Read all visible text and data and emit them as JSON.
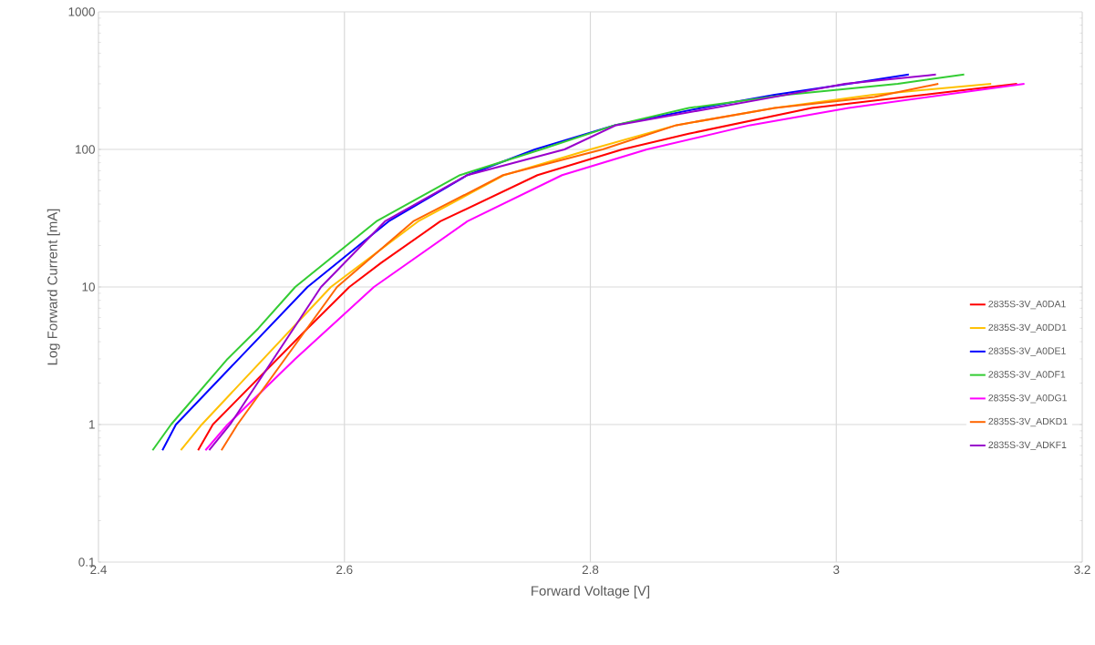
{
  "chart_data": {
    "type": "line",
    "xlabel": "Forward Voltage [V]",
    "ylabel": "Log Forward Current [mA]",
    "xlim": [
      2.4,
      3.2
    ],
    "xticks": [
      2.4,
      2.6,
      2.8,
      3,
      3.2
    ],
    "ylim": [
      0.1,
      1000
    ],
    "yticks": [
      0.1,
      1,
      10,
      100,
      1000
    ],
    "log": "y",
    "grid": true,
    "legend": "right",
    "series": [
      {
        "name": "2835S-3V_A0DA1",
        "color": "#ff0000",
        "x": [
          2.481,
          2.493,
          2.57,
          2.604,
          2.63,
          2.678,
          2.757,
          2.826,
          2.88,
          2.98,
          3.147
        ],
        "values": [
          0.65,
          1,
          5,
          10,
          15,
          30,
          65,
          100,
          130,
          200,
          300
        ]
      },
      {
        "name": "2835S-3V_A0DD1",
        "color": "#ffc000",
        "x": [
          2.467,
          2.484,
          2.589,
          2.66,
          2.73,
          2.8,
          2.87,
          2.95,
          3.03,
          3.126
        ],
        "values": [
          0.65,
          1,
          10,
          30,
          65,
          100,
          150,
          200,
          250,
          300
        ]
      },
      {
        "name": "2835S-3V_A0DE1",
        "color": "#0000ff",
        "x": [
          2.452,
          2.463,
          2.57,
          2.636,
          2.7,
          2.755,
          2.82,
          2.89,
          2.95,
          3.01,
          3.059
        ],
        "values": [
          0.65,
          1,
          10,
          30,
          65,
          100,
          150,
          200,
          250,
          300,
          350
        ]
      },
      {
        "name": "2835S-3V_A0DF1",
        "color": "#33cc33",
        "x": [
          2.444,
          2.459,
          2.505,
          2.53,
          2.56,
          2.626,
          2.694,
          2.76,
          2.82,
          2.88,
          2.96,
          3.05,
          3.104
        ],
        "values": [
          0.65,
          1,
          3,
          5,
          10,
          30,
          65,
          100,
          150,
          200,
          250,
          300,
          350
        ]
      },
      {
        "name": "2835S-3V_A0DG1",
        "color": "#ff00ff",
        "x": [
          2.487,
          2.505,
          2.56,
          2.624,
          2.7,
          2.777,
          2.846,
          2.93,
          3.01,
          3.153
        ],
        "values": [
          0.65,
          1,
          3,
          10,
          30,
          65,
          100,
          150,
          200,
          300
        ]
      },
      {
        "name": "2835S-3V_ADKD1",
        "color": "#ff6600",
        "x": [
          2.5,
          2.513,
          2.594,
          2.656,
          2.729,
          2.81,
          2.87,
          2.95,
          3.031,
          3.083
        ],
        "values": [
          0.65,
          1,
          10,
          30,
          65,
          100,
          150,
          200,
          240,
          300
        ]
      },
      {
        "name": "2835S-3V_ADKF1",
        "color": "#9900cc",
        "x": [
          2.49,
          2.507,
          2.581,
          2.633,
          2.7,
          2.779,
          2.821,
          2.9,
          2.96,
          3.007,
          3.081
        ],
        "values": [
          0.65,
          1,
          10,
          30,
          65,
          100,
          150,
          200,
          250,
          300,
          350
        ]
      }
    ]
  }
}
